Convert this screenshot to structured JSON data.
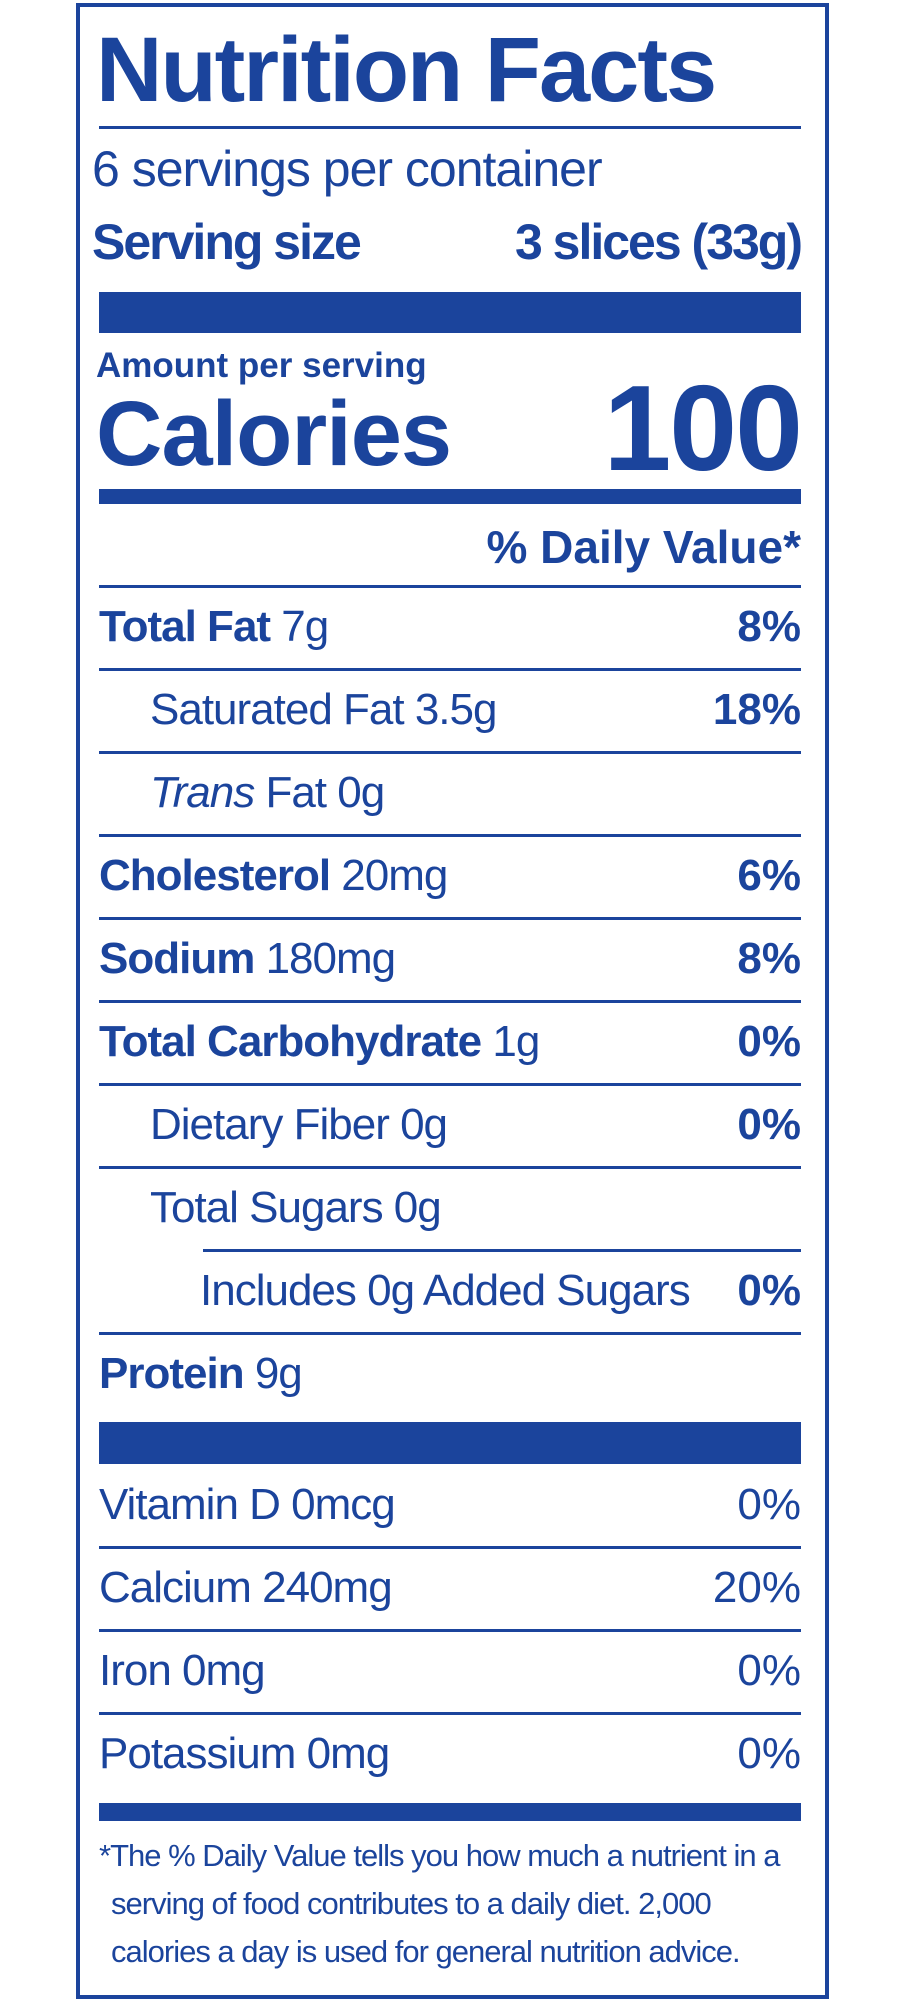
{
  "header": {
    "title": "Nutrition Facts",
    "servings": "6 servings per container",
    "serving_size_label": "Serving size",
    "serving_size_value": "3 slices (33g)"
  },
  "calories": {
    "amount_label": "Amount per serving",
    "label": "Calories",
    "value": "100"
  },
  "daily_value_header": "% Daily Value*",
  "nutrients": [
    {
      "name": "Total Fat",
      "amount": "7g",
      "dv": "8%"
    },
    {
      "name": "Saturated Fat 3.5g",
      "dv": "18%"
    },
    {
      "name_italic": "Trans",
      "name": "Fat 0g"
    },
    {
      "name": "Cholesterol",
      "amount": "20mg",
      "dv": "6%"
    },
    {
      "name": "Sodium",
      "amount": "180mg",
      "dv": "8%"
    },
    {
      "name": "Total Carbohydrate",
      "amount": "1g",
      "dv": "0%"
    },
    {
      "name": "Dietary Fiber 0g",
      "dv": "0%"
    },
    {
      "name": "Total Sugars 0g"
    },
    {
      "name": "Includes 0g Added Sugars",
      "dv": "0%"
    },
    {
      "name": "Protein",
      "amount": "9g"
    }
  ],
  "vitamins": [
    {
      "name": "Vitamin D 0mcg",
      "dv": "0%"
    },
    {
      "name": "Calcium 240mg",
      "dv": "20%"
    },
    {
      "name": "Iron 0mg",
      "dv": "0%"
    },
    {
      "name": "Potassium 0mg",
      "dv": "0%"
    }
  ],
  "footnote": "*The % Daily Value tells you how much a nutrient in a serving of food contributes to a daily diet. 2,000 calories a day is used for general nutrition advice."
}
